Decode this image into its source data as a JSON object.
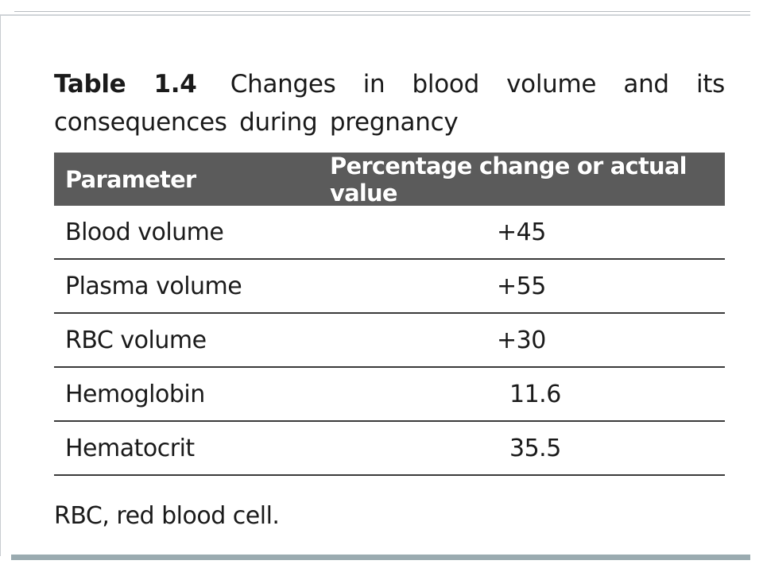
{
  "caption": {
    "label": "Table 1.4",
    "text": "Changes in blood volume and its consequences during pregnancy"
  },
  "table": {
    "headers": [
      "Parameter",
      "Percentage change or actual value"
    ],
    "rows": [
      {
        "parameter": "Blood volume",
        "value": "+45"
      },
      {
        "parameter": "Plasma volume",
        "value": "+55"
      },
      {
        "parameter": "RBC volume",
        "value": "+30"
      },
      {
        "parameter": "Hemoglobin",
        "value": "11.6"
      },
      {
        "parameter": "Hematocrit",
        "value": "35.5"
      }
    ]
  },
  "footnote": "RBC, red blood cell.",
  "colors": {
    "header_bg": "#5b5b5b",
    "header_text": "#ffffff",
    "bottom_bar": "#9aabb0"
  }
}
